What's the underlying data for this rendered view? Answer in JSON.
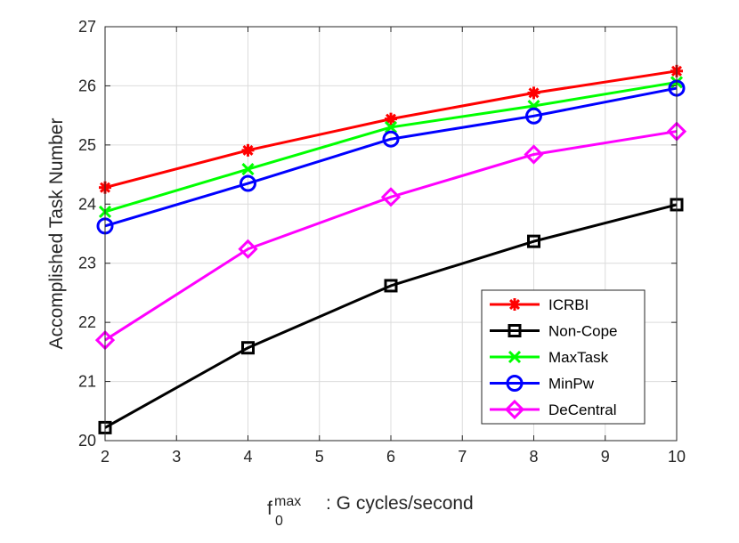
{
  "chart_data": {
    "type": "line",
    "title": "",
    "xlabel": {
      "base": "f",
      "superscript": "max",
      "subscript": "0",
      "text": ": G cycles/second"
    },
    "ylabel": "Accomplished Task Number",
    "xlim": [
      2,
      10
    ],
    "ylim": [
      20,
      27
    ],
    "xticks": [
      "2",
      "3",
      "4",
      "5",
      "6",
      "7",
      "8",
      "9",
      "10"
    ],
    "yticks": [
      "20",
      "21",
      "22",
      "23",
      "24",
      "25",
      "26",
      "27"
    ],
    "grid": true,
    "legend_position": "lower-right",
    "x": [
      2,
      4,
      6,
      8,
      10
    ],
    "series": [
      {
        "name": "ICRBI",
        "color": "#ff0000",
        "marker": "asterisk",
        "values": [
          24.28,
          24.91,
          25.44,
          25.88,
          26.25
        ]
      },
      {
        "name": "Non-Cope",
        "color": "#000000",
        "marker": "square",
        "values": [
          20.22,
          21.57,
          22.62,
          23.37,
          23.99
        ]
      },
      {
        "name": "MaxTask",
        "color": "#00ff00",
        "marker": "x",
        "values": [
          23.87,
          24.59,
          25.3,
          25.66,
          26.06
        ]
      },
      {
        "name": "MinPw",
        "color": "#0000ff",
        "marker": "circle",
        "values": [
          23.63,
          24.35,
          25.1,
          25.49,
          25.96
        ]
      },
      {
        "name": "DeCentral",
        "color": "#ff00ff",
        "marker": "diamond",
        "values": [
          21.7,
          23.24,
          24.12,
          24.84,
          25.23
        ]
      }
    ]
  }
}
